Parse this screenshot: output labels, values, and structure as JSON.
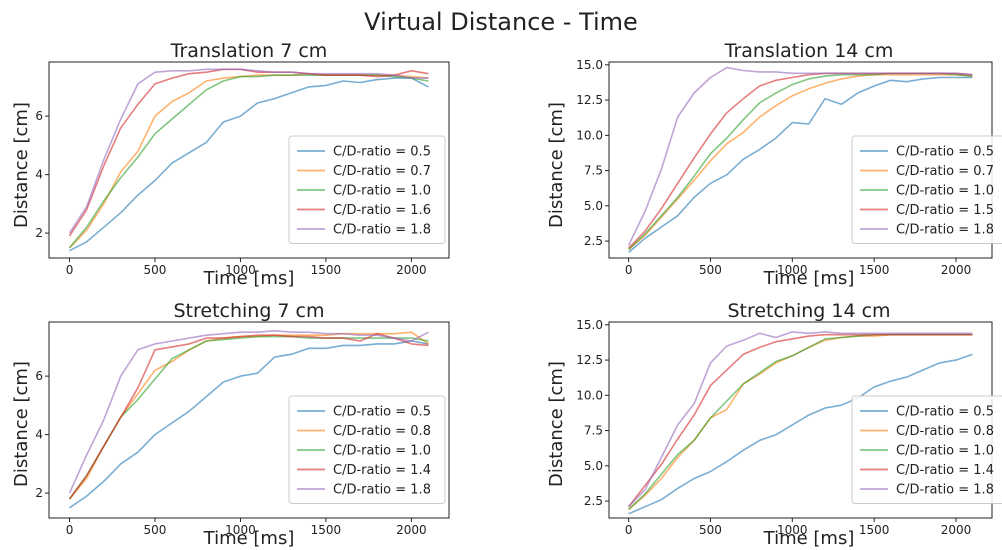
{
  "figure": {
    "title": "Virtual Distance - Time"
  },
  "chart_data": [
    {
      "type": "line",
      "title": "Translation 7 cm",
      "xlabel": "Time [ms]",
      "ylabel": "Distance [cm]",
      "xlim": [
        -120,
        2220
      ],
      "ylim": [
        1.15,
        7.85
      ],
      "xticks": [
        0,
        500,
        1000,
        1500,
        2000
      ],
      "yticks": [
        2,
        4,
        6
      ],
      "ytick_labels": [
        "2",
        "4",
        "6"
      ],
      "legend_position": "lower-right",
      "x": [
        0,
        100,
        200,
        300,
        400,
        500,
        600,
        700,
        800,
        900,
        1000,
        1100,
        1200,
        1300,
        1400,
        1500,
        1600,
        1700,
        1800,
        1900,
        2000,
        2100
      ],
      "series": [
        {
          "name": "C/D-ratio = 0.5",
          "color": "#1f77b4",
          "values": [
            1.4,
            1.7,
            2.2,
            2.7,
            3.3,
            3.8,
            4.4,
            4.75,
            5.1,
            5.8,
            6.0,
            6.45,
            6.6,
            6.8,
            7.0,
            7.05,
            7.2,
            7.15,
            7.25,
            7.3,
            7.3,
            7.0
          ]
        },
        {
          "name": "C/D-ratio = 0.7",
          "color": "#ff7f0e",
          "values": [
            1.5,
            2.1,
            3.0,
            4.1,
            4.8,
            6.0,
            6.5,
            6.8,
            7.2,
            7.3,
            7.35,
            7.4,
            7.4,
            7.4,
            7.45,
            7.4,
            7.4,
            7.4,
            7.4,
            7.4,
            7.35,
            7.3
          ]
        },
        {
          "name": "C/D-ratio = 1.0",
          "color": "#2ca02c",
          "values": [
            1.5,
            2.2,
            3.1,
            3.9,
            4.6,
            5.4,
            5.9,
            6.4,
            6.9,
            7.2,
            7.35,
            7.35,
            7.4,
            7.4,
            7.4,
            7.4,
            7.4,
            7.4,
            7.4,
            7.35,
            7.3,
            7.2
          ]
        },
        {
          "name": "C/D-ratio = 1.6",
          "color": "#d62728",
          "values": [
            1.9,
            2.8,
            4.3,
            5.6,
            6.4,
            7.1,
            7.3,
            7.45,
            7.5,
            7.6,
            7.6,
            7.5,
            7.5,
            7.5,
            7.45,
            7.4,
            7.4,
            7.4,
            7.35,
            7.4,
            7.55,
            7.45
          ]
        },
        {
          "name": "C/D-ratio = 1.8",
          "color": "#9467bd",
          "values": [
            2.0,
            2.9,
            4.5,
            5.9,
            7.1,
            7.5,
            7.55,
            7.55,
            7.6,
            7.6,
            7.6,
            7.55,
            7.5,
            7.5,
            7.45,
            7.45,
            7.45,
            7.45,
            7.45,
            7.4,
            7.3,
            7.3
          ]
        }
      ]
    },
    {
      "type": "line",
      "title": "Translation 14 cm",
      "xlabel": "Time [ms]",
      "ylabel": "Distance [cm]",
      "xlim": [
        -120,
        2220
      ],
      "ylim": [
        1.3,
        15.2
      ],
      "xticks": [
        0,
        500,
        1000,
        1500,
        2000
      ],
      "yticks": [
        2.5,
        5.0,
        7.5,
        10.0,
        12.5,
        15.0
      ],
      "ytick_labels": [
        "2.5",
        "5.0",
        "7.5",
        "10.0",
        "12.5",
        "15.0"
      ],
      "legend_position": "lower-right",
      "x": [
        0,
        100,
        200,
        300,
        400,
        500,
        600,
        700,
        800,
        900,
        1000,
        1100,
        1200,
        1300,
        1400,
        1500,
        1600,
        1700,
        1800,
        1900,
        2000,
        2100
      ],
      "series": [
        {
          "name": "C/D-ratio = 0.5",
          "color": "#1f77b4",
          "values": [
            1.7,
            2.7,
            3.5,
            4.3,
            5.6,
            6.6,
            7.2,
            8.3,
            9.0,
            9.8,
            10.9,
            10.8,
            12.6,
            12.2,
            13.0,
            13.5,
            13.9,
            13.8,
            14.0,
            14.1,
            14.1,
            14.1
          ]
        },
        {
          "name": "C/D-ratio = 0.7",
          "color": "#ff7f0e",
          "values": [
            1.9,
            2.9,
            4.2,
            5.5,
            6.8,
            8.2,
            9.4,
            10.2,
            11.3,
            12.1,
            12.8,
            13.3,
            13.7,
            14.0,
            14.2,
            14.3,
            14.3,
            14.3,
            14.3,
            14.3,
            14.3,
            14.2
          ]
        },
        {
          "name": "C/D-ratio = 1.0",
          "color": "#2ca02c",
          "values": [
            1.9,
            3.0,
            4.3,
            5.6,
            7.1,
            8.7,
            9.8,
            11.1,
            12.3,
            13.0,
            13.6,
            14.0,
            14.2,
            14.3,
            14.3,
            14.3,
            14.4,
            14.4,
            14.4,
            14.4,
            14.3,
            14.2
          ]
        },
        {
          "name": "C/D-ratio = 1.5",
          "color": "#d62728",
          "values": [
            2.0,
            3.2,
            4.8,
            6.6,
            8.4,
            10.1,
            11.6,
            12.6,
            13.5,
            13.9,
            14.1,
            14.3,
            14.4,
            14.4,
            14.4,
            14.4,
            14.4,
            14.4,
            14.4,
            14.4,
            14.4,
            14.3
          ]
        },
        {
          "name": "C/D-ratio = 1.8",
          "color": "#9467bd",
          "values": [
            2.2,
            4.6,
            7.6,
            11.3,
            13.0,
            14.1,
            14.8,
            14.6,
            14.5,
            14.5,
            14.4,
            14.4,
            14.4,
            14.4,
            14.4,
            14.4,
            14.4,
            14.4,
            14.4,
            14.4,
            14.4,
            14.3
          ]
        }
      ]
    },
    {
      "type": "line",
      "title": "Stretching 7 cm",
      "xlabel": "Time [ms]",
      "ylabel": "Distance [cm]",
      "xlim": [
        -120,
        2220
      ],
      "ylim": [
        1.15,
        7.85
      ],
      "xticks": [
        0,
        500,
        1000,
        1500,
        2000
      ],
      "yticks": [
        2,
        4,
        6
      ],
      "ytick_labels": [
        "2",
        "4",
        "6"
      ],
      "legend_position": "lower-right",
      "x": [
        0,
        100,
        200,
        300,
        400,
        500,
        600,
        700,
        800,
        900,
        1000,
        1100,
        1200,
        1300,
        1400,
        1500,
        1600,
        1700,
        1800,
        1900,
        2000,
        2100
      ],
      "series": [
        {
          "name": "C/D-ratio = 0.5",
          "color": "#1f77b4",
          "values": [
            1.5,
            1.9,
            2.4,
            3.0,
            3.4,
            4.0,
            4.4,
            4.8,
            5.3,
            5.8,
            6.0,
            6.1,
            6.65,
            6.75,
            6.95,
            6.95,
            7.05,
            7.05,
            7.1,
            7.1,
            7.2,
            7.1
          ]
        },
        {
          "name": "C/D-ratio = 0.8",
          "color": "#ff7f0e",
          "values": [
            1.8,
            2.5,
            3.6,
            4.6,
            5.4,
            6.2,
            6.5,
            6.9,
            7.2,
            7.3,
            7.35,
            7.35,
            7.4,
            7.4,
            7.4,
            7.4,
            7.45,
            7.45,
            7.45,
            7.45,
            7.5,
            7.1
          ]
        },
        {
          "name": "C/D-ratio = 1.0",
          "color": "#2ca02c",
          "values": [
            1.8,
            2.6,
            3.6,
            4.6,
            5.2,
            5.9,
            6.6,
            6.9,
            7.2,
            7.25,
            7.3,
            7.35,
            7.35,
            7.35,
            7.3,
            7.3,
            7.3,
            7.3,
            7.3,
            7.3,
            7.3,
            7.2
          ]
        },
        {
          "name": "C/D-ratio = 1.4",
          "color": "#d62728",
          "values": [
            1.8,
            2.6,
            3.6,
            4.6,
            5.6,
            6.9,
            7.0,
            7.1,
            7.3,
            7.3,
            7.35,
            7.4,
            7.4,
            7.35,
            7.35,
            7.3,
            7.3,
            7.2,
            7.45,
            7.3,
            7.1,
            7.05
          ]
        },
        {
          "name": "C/D-ratio = 1.8",
          "color": "#9467bd",
          "values": [
            2.0,
            3.3,
            4.5,
            6.0,
            6.9,
            7.1,
            7.2,
            7.3,
            7.4,
            7.45,
            7.5,
            7.5,
            7.55,
            7.5,
            7.5,
            7.45,
            7.45,
            7.4,
            7.4,
            7.3,
            7.2,
            7.5
          ]
        }
      ]
    },
    {
      "type": "line",
      "title": "Stretching 14 cm",
      "xlabel": "Time [ms]",
      "ylabel": "Distance [cm]",
      "xlim": [
        -120,
        2220
      ],
      "ylim": [
        1.3,
        15.2
      ],
      "xticks": [
        0,
        500,
        1000,
        1500,
        2000
      ],
      "yticks": [
        2.5,
        5.0,
        7.5,
        10.0,
        12.5,
        15.0
      ],
      "ytick_labels": [
        "2.5",
        "5.0",
        "7.5",
        "10.0",
        "12.5",
        "15.0"
      ],
      "legend_position": "lower-right",
      "x": [
        0,
        100,
        200,
        300,
        400,
        500,
        600,
        700,
        800,
        900,
        1000,
        1100,
        1200,
        1300,
        1400,
        1500,
        1600,
        1700,
        1800,
        1900,
        2000,
        2100
      ],
      "series": [
        {
          "name": "C/D-ratio = 0.5",
          "color": "#1f77b4",
          "values": [
            1.6,
            2.1,
            2.6,
            3.4,
            4.1,
            4.6,
            5.3,
            6.1,
            6.8,
            7.2,
            7.9,
            8.6,
            9.1,
            9.3,
            9.8,
            10.6,
            11.0,
            11.3,
            11.8,
            12.3,
            12.5,
            12.9
          ]
        },
        {
          "name": "C/D-ratio = 0.8",
          "color": "#ff7f0e",
          "values": [
            1.9,
            2.9,
            4.1,
            5.6,
            6.8,
            8.4,
            9.0,
            10.8,
            11.5,
            12.3,
            12.8,
            13.4,
            13.9,
            14.1,
            14.2,
            14.2,
            14.3,
            14.3,
            14.3,
            14.3,
            14.3,
            14.3
          ]
        },
        {
          "name": "C/D-ratio = 1.0",
          "color": "#2ca02c",
          "values": [
            1.9,
            3.0,
            4.4,
            5.8,
            6.8,
            8.4,
            9.6,
            10.8,
            11.6,
            12.4,
            12.8,
            13.4,
            14.0,
            14.1,
            14.2,
            14.3,
            14.3,
            14.3,
            14.3,
            14.3,
            14.3,
            14.3
          ]
        },
        {
          "name": "C/D-ratio = 1.4",
          "color": "#d62728",
          "values": [
            2.1,
            3.6,
            5.1,
            6.9,
            8.6,
            10.7,
            11.8,
            12.9,
            13.4,
            13.8,
            14.0,
            14.2,
            14.3,
            14.3,
            14.3,
            14.3,
            14.3,
            14.3,
            14.3,
            14.3,
            14.3,
            14.3
          ]
        },
        {
          "name": "C/D-ratio = 1.8",
          "color": "#9467bd",
          "values": [
            2.1,
            3.3,
            5.6,
            7.9,
            9.4,
            12.3,
            13.5,
            13.9,
            14.4,
            14.1,
            14.5,
            14.4,
            14.5,
            14.4,
            14.4,
            14.4,
            14.4,
            14.4,
            14.4,
            14.4,
            14.4,
            14.4
          ]
        }
      ]
    }
  ]
}
